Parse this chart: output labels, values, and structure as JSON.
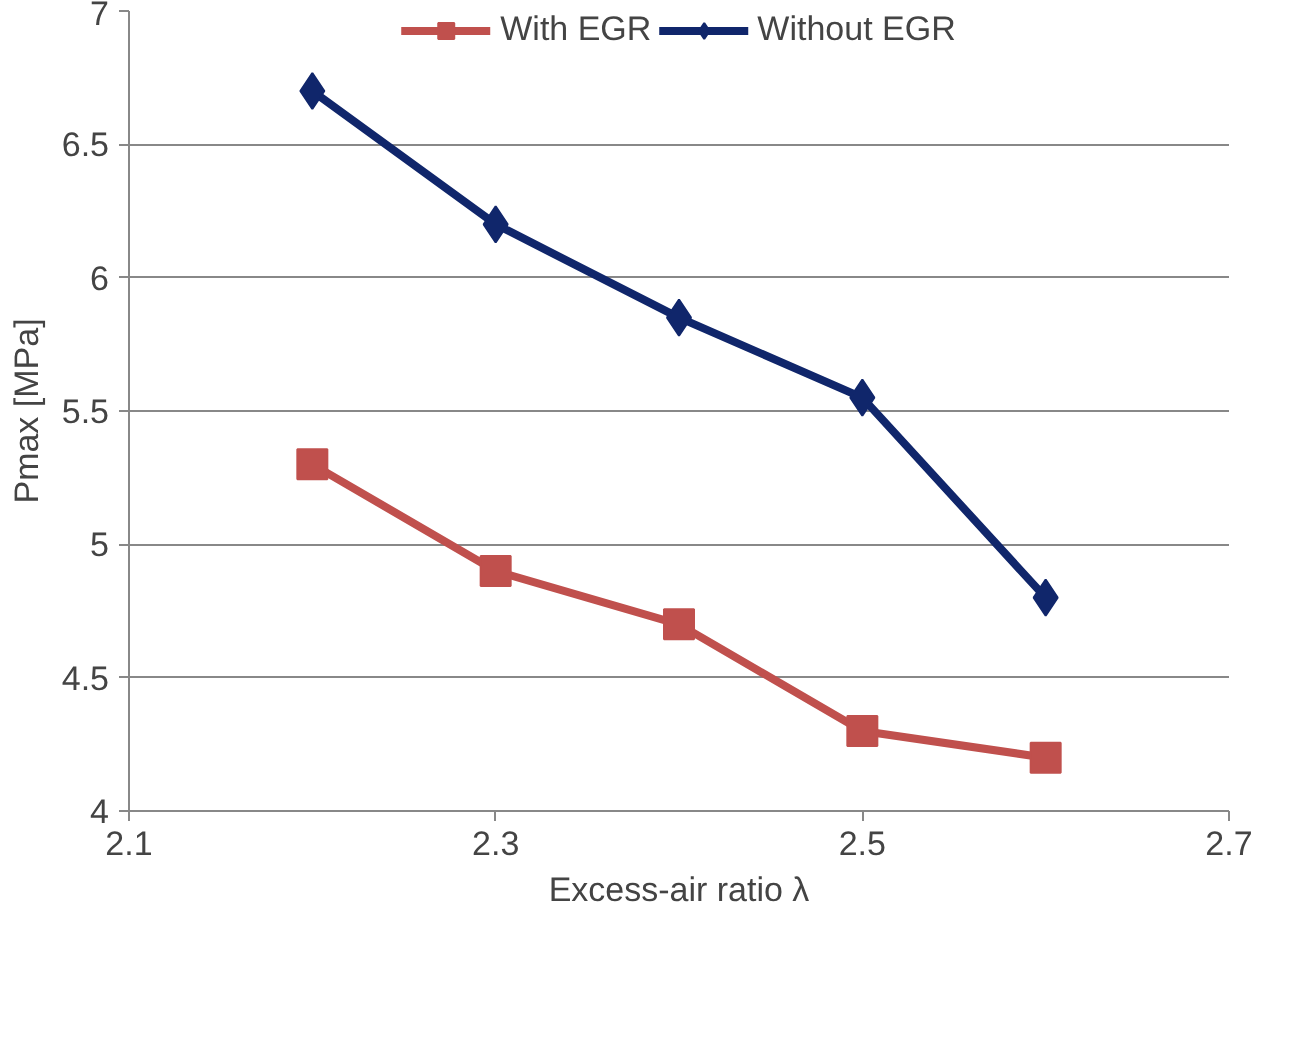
{
  "chart_data": {
    "type": "line",
    "xlabel": "Excess-air ratio λ",
    "ylabel": "Pmax [MPa]",
    "x": [
      2.2,
      2.3,
      2.4,
      2.5,
      2.6
    ],
    "series": [
      {
        "name": "With EGR",
        "color": "#c0504d",
        "marker": "square",
        "values": [
          5.3,
          4.9,
          4.7,
          4.3,
          4.2
        ]
      },
      {
        "name": "Without EGR",
        "color": "#10266b",
        "marker": "diamond",
        "values": [
          6.7,
          6.2,
          5.85,
          5.55,
          4.8
        ]
      }
    ],
    "xlim": [
      2.1,
      2.7
    ],
    "xticks": [
      2.1,
      2.3,
      2.5,
      2.7
    ],
    "ylim": [
      4,
      7
    ],
    "yticks": [
      4,
      4.5,
      5,
      5.5,
      6,
      6.5,
      7
    ],
    "grid": "y",
    "legend": "top",
    "line_style": "solid"
  }
}
